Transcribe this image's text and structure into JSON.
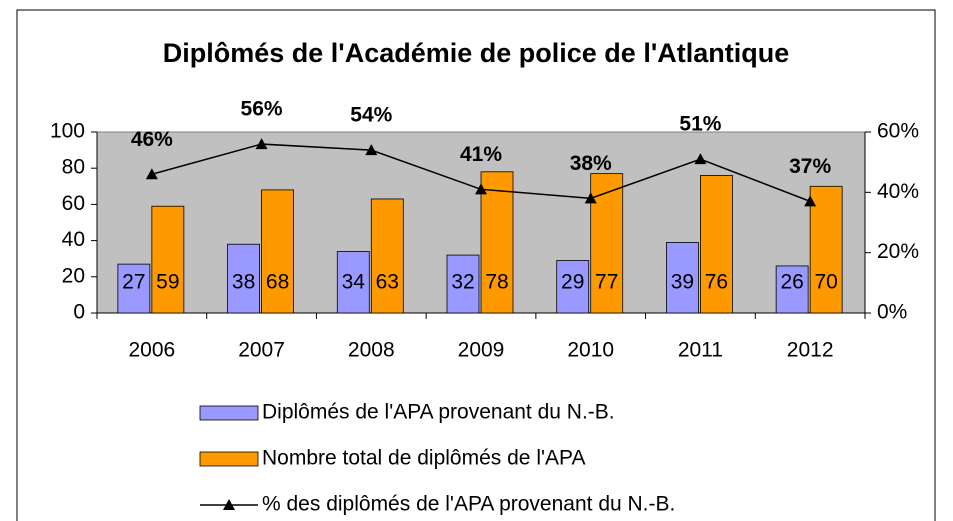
{
  "chart_data": {
    "type": "bar",
    "title": "Diplômés de l'Académie de police de l'Atlantique",
    "categories": [
      "2006",
      "2007",
      "2008",
      "2009",
      "2010",
      "2011",
      "2012"
    ],
    "series": [
      {
        "name": "Diplômés de l'APA provenant du N.-B.",
        "color": "#9999ff",
        "values": [
          27,
          38,
          34,
          32,
          29,
          39,
          26
        ]
      },
      {
        "name": "Nombre total de diplômés de l'APA",
        "color": "#ff9900",
        "values": [
          59,
          68,
          63,
          78,
          77,
          76,
          70
        ]
      },
      {
        "name": "% des diplômés de l'APA provenant du N.-B.",
        "type": "line",
        "axis": "y2",
        "color": "#000000",
        "values": [
          46,
          56,
          54,
          41,
          38,
          51,
          37
        ],
        "value_labels": [
          "46%",
          "56%",
          "54%",
          "41%",
          "38%",
          "51%",
          "37%"
        ]
      }
    ],
    "ylim": [
      0,
      100
    ],
    "yticks": [
      0,
      20,
      40,
      60,
      80,
      100
    ],
    "y2lim": [
      0,
      60
    ],
    "y2ticks": [
      {
        "value": 0,
        "label": "0%"
      },
      {
        "value": 20,
        "label": "20%"
      },
      {
        "value": 40,
        "label": "40%"
      },
      {
        "value": 60,
        "label": "60%"
      }
    ],
    "plot_background": "#c0c0c0",
    "legend": "bottom"
  }
}
